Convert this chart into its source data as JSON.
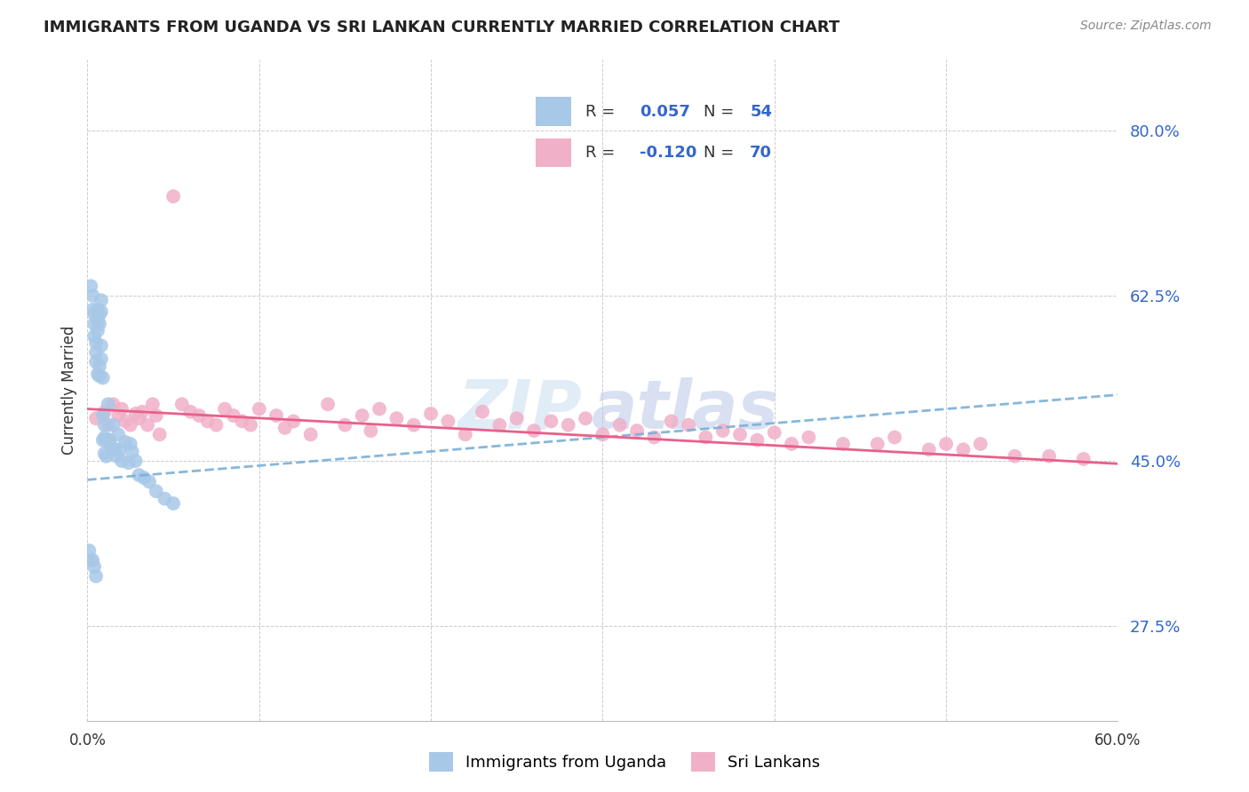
{
  "title": "IMMIGRANTS FROM UGANDA VS SRI LANKAN CURRENTLY MARRIED CORRELATION CHART",
  "source": "Source: ZipAtlas.com",
  "ylabel": "Currently Married",
  "ytick_labels": [
    "27.5%",
    "45.0%",
    "62.5%",
    "80.0%"
  ],
  "ytick_values": [
    0.275,
    0.45,
    0.625,
    0.8
  ],
  "xlim": [
    0.0,
    0.6
  ],
  "ylim": [
    0.175,
    0.875
  ],
  "color_uganda": "#a8c8e8",
  "color_srilanka": "#f0b0c8",
  "color_uganda_line": "#7ab0d8",
  "color_srilanka_line": "#e8608a",
  "color_rn_text": "#3366cc",
  "uganda_line_x0": 0.0,
  "uganda_line_y0": 0.43,
  "uganda_line_x1": 0.6,
  "uganda_line_y1": 0.52,
  "srilanka_line_x0": 0.0,
  "srilanka_line_y0": 0.505,
  "srilanka_line_x1": 0.6,
  "srilanka_line_y1": 0.447,
  "watermark_zip_color": "#c8ddf0",
  "watermark_atlas_color": "#b8c8e8",
  "legend_r1": "R =  0.057",
  "legend_n1": "N = 54",
  "legend_r2": "R = -0.120",
  "legend_n2": "N = 70"
}
